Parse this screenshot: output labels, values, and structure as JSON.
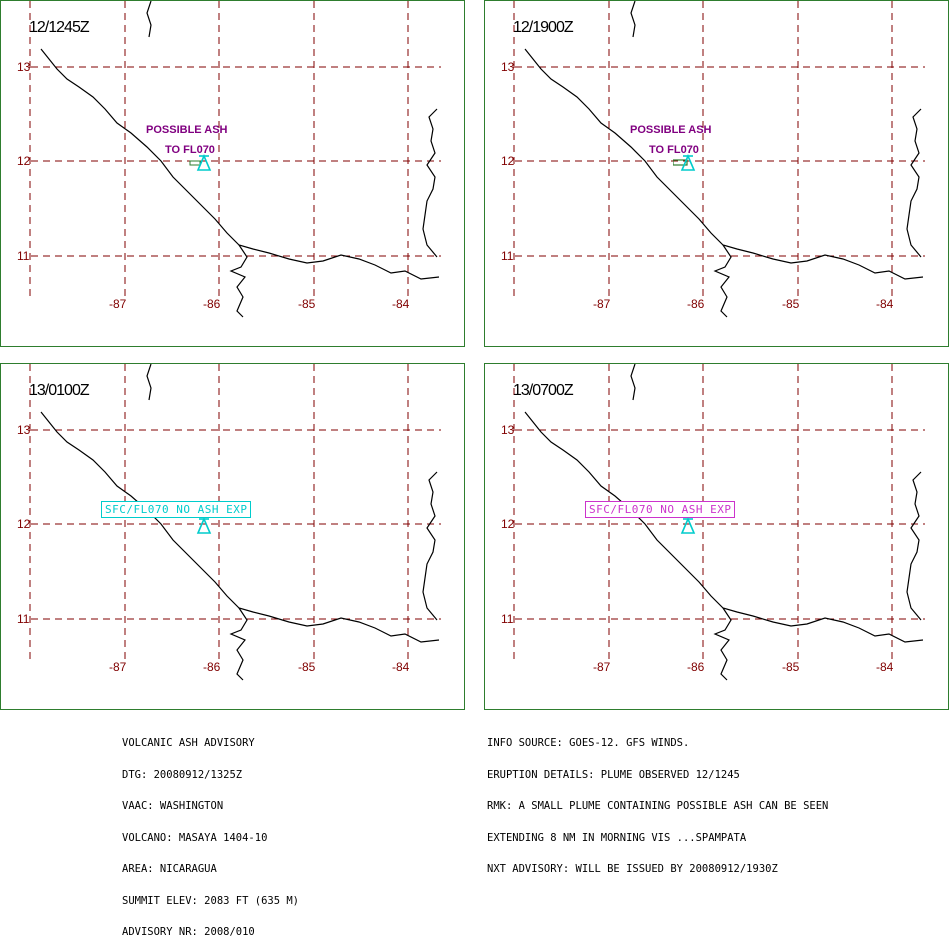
{
  "panels": [
    {
      "time": "12/1245Z",
      "lat_labels": [
        "13",
        "12",
        "11"
      ],
      "lon_labels": [
        "-87",
        "-86",
        "-85",
        "-84"
      ],
      "ash_line1": "POSSIBLE ASH",
      "ash_line2": "TO FL070"
    },
    {
      "time": "12/1900Z",
      "lat_labels": [
        "13",
        "12",
        "11"
      ],
      "lon_labels": [
        "-87",
        "-86",
        "-85",
        "-84"
      ],
      "ash_line1": "POSSIBLE ASH",
      "ash_line2": "TO FL070"
    },
    {
      "time": "13/0100Z",
      "lat_labels": [
        "13",
        "12",
        "11"
      ],
      "lon_labels": [
        "-87",
        "-86",
        "-85",
        "-84"
      ],
      "box_label": "SFC/FL070 NO ASH EXP"
    },
    {
      "time": "13/0700Z",
      "lat_labels": [
        "13",
        "12",
        "11"
      ],
      "lon_labels": [
        "-87",
        "-86",
        "-85",
        "-84"
      ],
      "box_label": "SFC/FL070 NO ASH EXP"
    }
  ],
  "advisory": {
    "lines": [
      "VOLCANIC ASH ADVISORY",
      "DTG: 20080912/1325Z",
      "VAAC: WASHINGTON",
      "VOLCANO: MASAYA 1404-10",
      "AREA: NICARAGUA",
      "SUMMIT ELEV: 2083 FT (635 M)",
      "ADVISORY NR: 2008/010"
    ]
  },
  "info": {
    "lines": [
      "INFO SOURCE: GOES-12. GFS WINDS.",
      "ERUPTION DETAILS: PLUME OBSERVED 12/1245",
      "RMK: A SMALL PLUME CONTAINING POSSIBLE ASH CAN BE SEEN",
      "EXTENDING 8 NM IN MORNING VIS ...SPAMPATA",
      "NXT ADVISORY: WILL BE ISSUED BY 20080912/1930Z"
    ]
  },
  "colors": {
    "grid": "#800000",
    "coast": "#000000",
    "volcano": "#00cccc",
    "ash_text": "#800080",
    "box_cyan": "#00cccc",
    "box_magenta": "#cc33cc",
    "frame": "#2e7d2e"
  }
}
